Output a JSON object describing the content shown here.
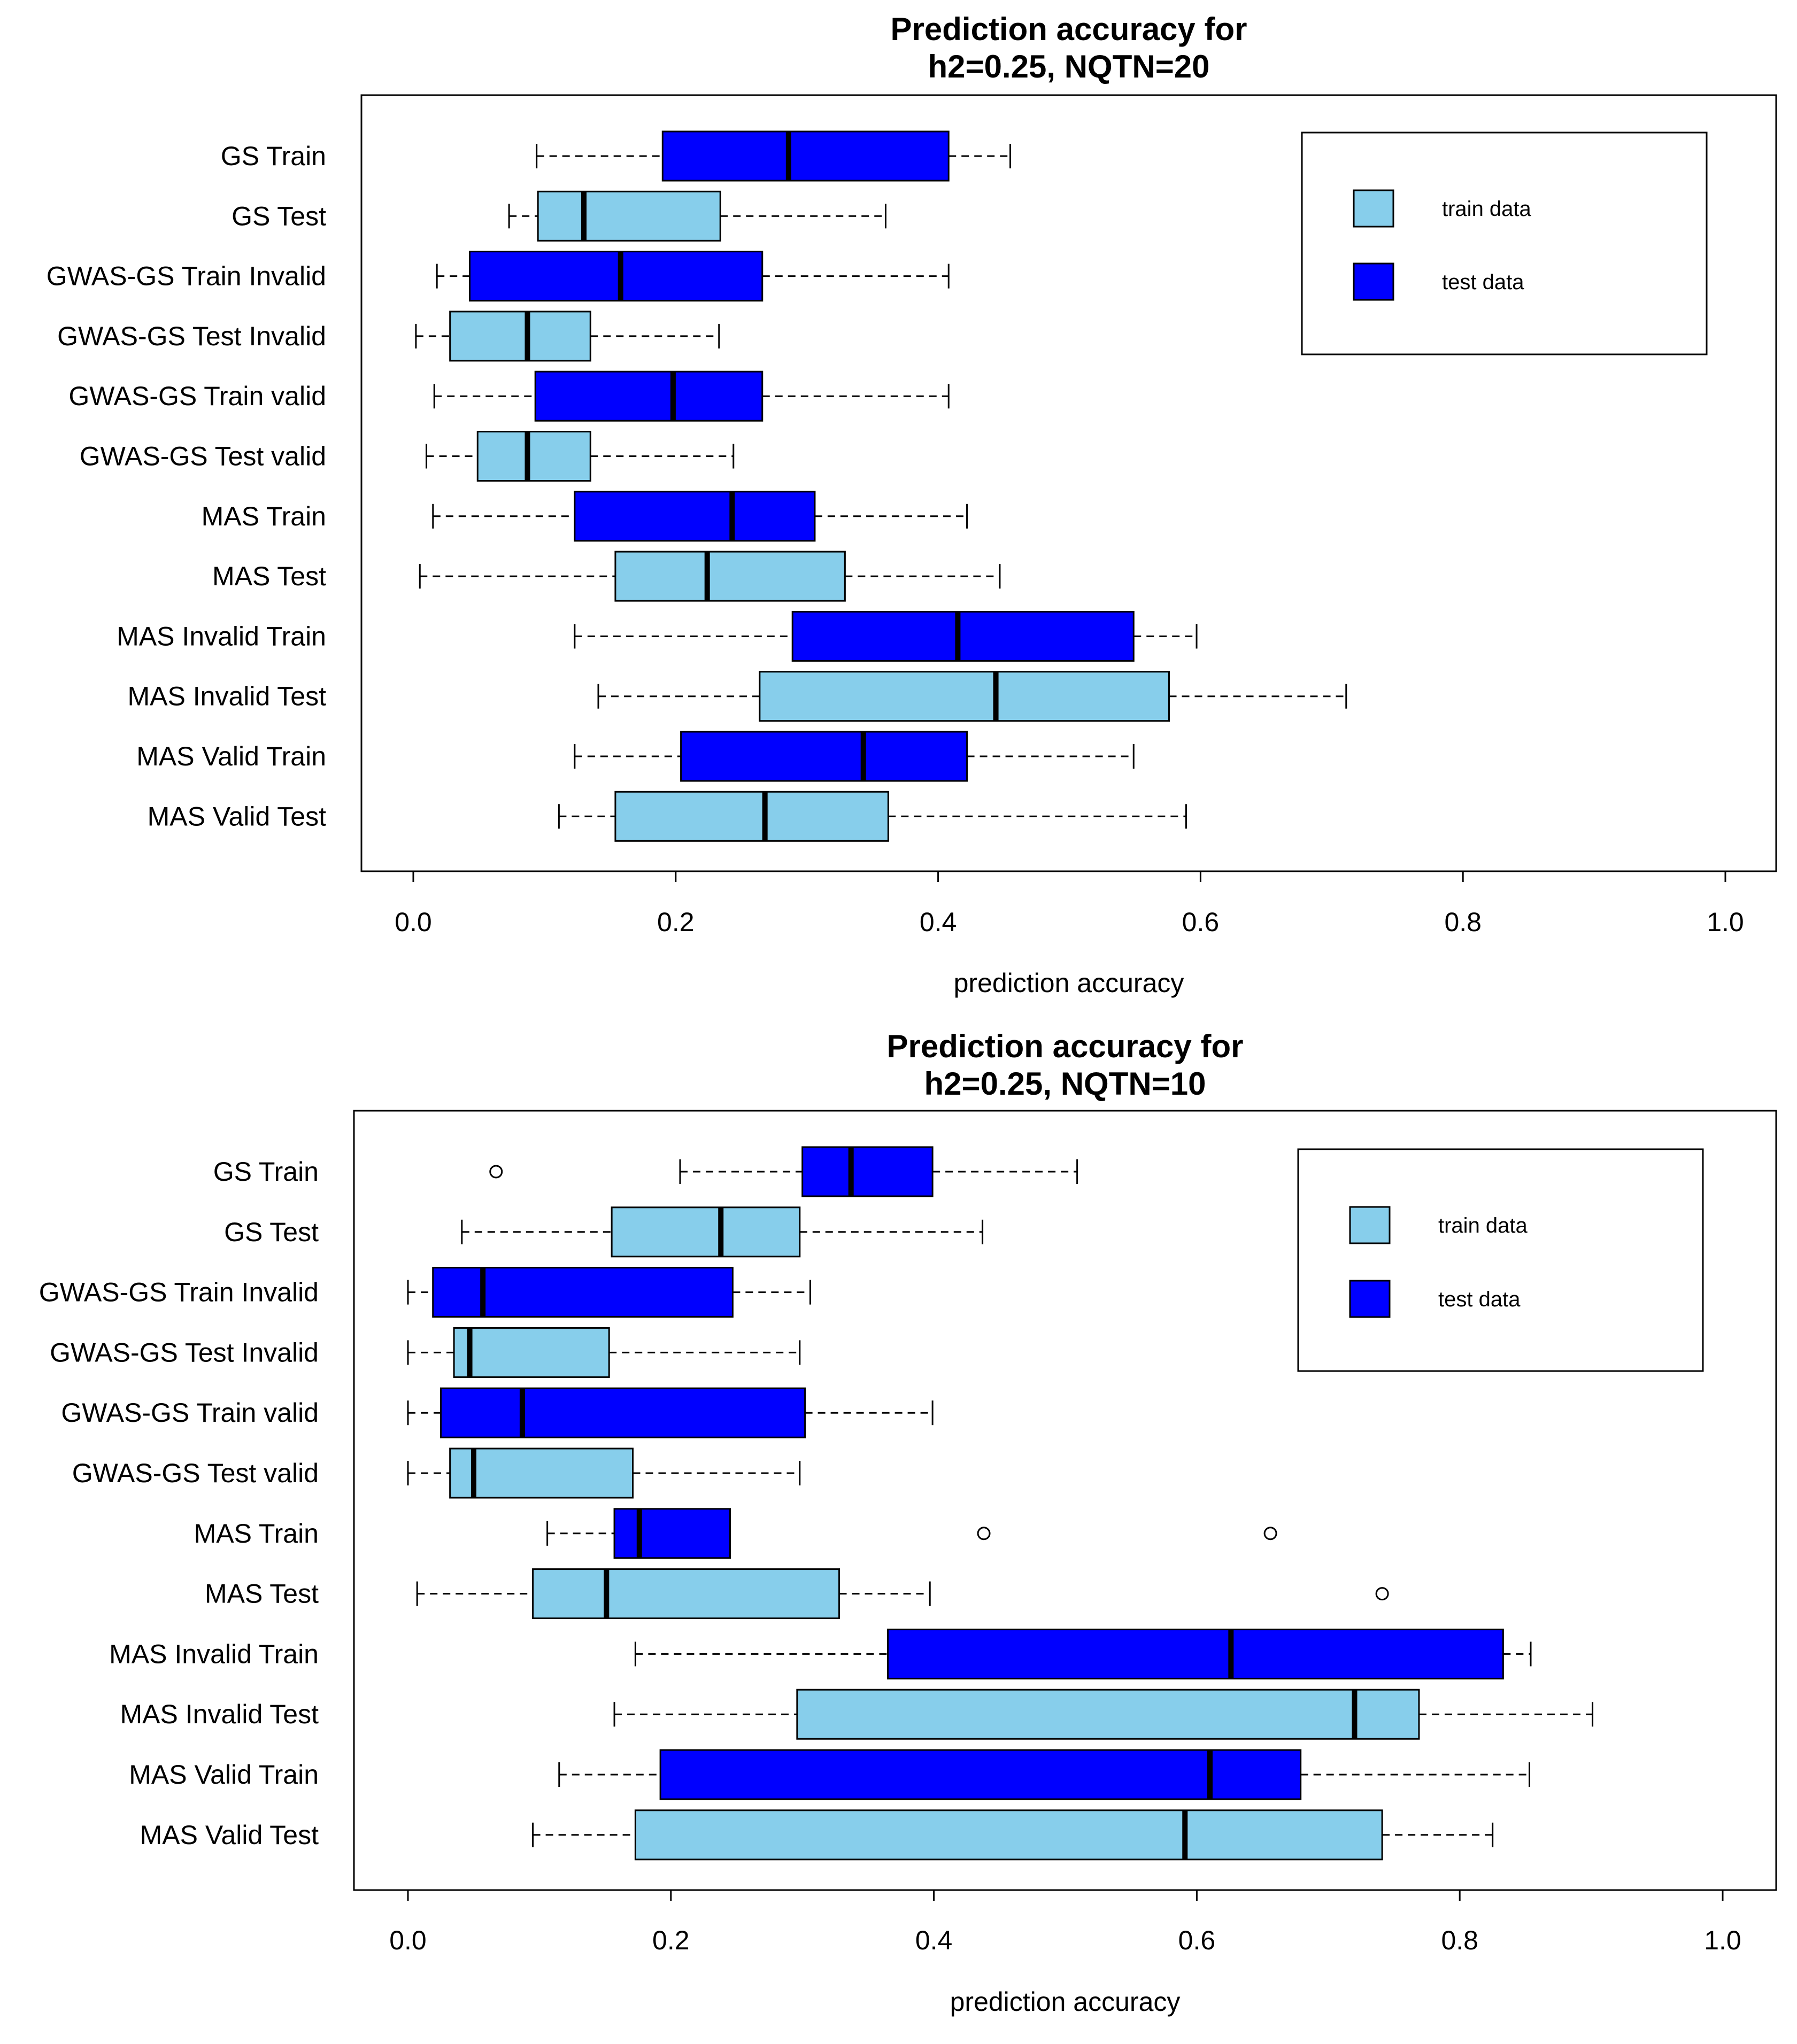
{
  "chart_data": [
    {
      "type": "boxplot",
      "orientation": "horizontal",
      "title": [
        "Prediction accuracy for",
        "h2=0.25, NQTN=20"
      ],
      "xlabel": "prediction accuracy",
      "xlim": [
        0.0,
        1.0
      ],
      "xticks": [
        "0.0",
        "0.2",
        "0.4",
        "0.6",
        "0.8",
        "1.0"
      ],
      "legend": {
        "position": "top-right",
        "entries": [
          {
            "label": "train data",
            "color": "#87ceeb"
          },
          {
            "label": "test data",
            "color": "#0000ff"
          }
        ]
      },
      "categories": [
        {
          "label": "GS Train",
          "color": "#0000ff",
          "min": 0.094,
          "q1": 0.19,
          "median": 0.286,
          "q3": 0.408,
          "max": 0.455,
          "outliers": []
        },
        {
          "label": "GS Test",
          "color": "#87ceeb",
          "min": 0.073,
          "q1": 0.095,
          "median": 0.13,
          "q3": 0.234,
          "max": 0.36,
          "outliers": []
        },
        {
          "label": "GWAS-GS Train Invalid",
          "color": "#0000ff",
          "min": 0.018,
          "q1": 0.043,
          "median": 0.158,
          "q3": 0.266,
          "max": 0.408,
          "outliers": []
        },
        {
          "label": "GWAS-GS Test Invalid",
          "color": "#87ceeb",
          "min": 0.002,
          "q1": 0.028,
          "median": 0.087,
          "q3": 0.135,
          "max": 0.233,
          "outliers": []
        },
        {
          "label": "GWAS-GS Train valid",
          "color": "#0000ff",
          "min": 0.016,
          "q1": 0.093,
          "median": 0.198,
          "q3": 0.266,
          "max": 0.408,
          "outliers": []
        },
        {
          "label": "GWAS-GS Test valid",
          "color": "#87ceeb",
          "min": 0.01,
          "q1": 0.049,
          "median": 0.087,
          "q3": 0.135,
          "max": 0.244,
          "outliers": []
        },
        {
          "label": "MAS Train",
          "color": "#0000ff",
          "min": 0.015,
          "q1": 0.123,
          "median": 0.243,
          "q3": 0.306,
          "max": 0.422,
          "outliers": []
        },
        {
          "label": "MAS Test",
          "color": "#87ceeb",
          "min": 0.005,
          "q1": 0.154,
          "median": 0.224,
          "q3": 0.329,
          "max": 0.447,
          "outliers": []
        },
        {
          "label": "MAS Invalid Train",
          "color": "#0000ff",
          "min": 0.123,
          "q1": 0.289,
          "median": 0.415,
          "q3": 0.549,
          "max": 0.597,
          "outliers": []
        },
        {
          "label": "MAS Invalid Test",
          "color": "#87ceeb",
          "min": 0.141,
          "q1": 0.264,
          "median": 0.444,
          "q3": 0.576,
          "max": 0.711,
          "outliers": []
        },
        {
          "label": "MAS Valid Train",
          "color": "#0000ff",
          "min": 0.123,
          "q1": 0.204,
          "median": 0.343,
          "q3": 0.422,
          "max": 0.549,
          "outliers": []
        },
        {
          "label": "MAS Valid Test",
          "color": "#87ceeb",
          "min": 0.111,
          "q1": 0.154,
          "median": 0.268,
          "q3": 0.362,
          "max": 0.589,
          "outliers": []
        }
      ]
    },
    {
      "type": "boxplot",
      "orientation": "horizontal",
      "title": [
        "Prediction accuracy for",
        "h2=0.25, NQTN=10"
      ],
      "xlabel": "prediction accuracy",
      "xlim": [
        0.0,
        1.0
      ],
      "xticks": [
        "0.0",
        "0.2",
        "0.4",
        "0.6",
        "0.8",
        "1.0"
      ],
      "legend": {
        "position": "top-right",
        "entries": [
          {
            "label": "train data",
            "color": "#87ceeb"
          },
          {
            "label": "test data",
            "color": "#0000ff"
          }
        ]
      },
      "categories": [
        {
          "label": "GS Train",
          "color": "#0000ff",
          "min": 0.207,
          "q1": 0.3,
          "median": 0.337,
          "q3": 0.399,
          "max": 0.509,
          "outliers": [
            0.067
          ]
        },
        {
          "label": "GS Test",
          "color": "#87ceeb",
          "min": 0.041,
          "q1": 0.155,
          "median": 0.238,
          "q3": 0.298,
          "max": 0.437,
          "outliers": []
        },
        {
          "label": "GWAS-GS Train Invalid",
          "color": "#0000ff",
          "min": 0.0,
          "q1": 0.019,
          "median": 0.057,
          "q3": 0.247,
          "max": 0.306,
          "outliers": []
        },
        {
          "label": "GWAS-GS Test Invalid",
          "color": "#87ceeb",
          "min": 0.0,
          "q1": 0.035,
          "median": 0.047,
          "q3": 0.153,
          "max": 0.298,
          "outliers": []
        },
        {
          "label": "GWAS-GS Train valid",
          "color": "#0000ff",
          "min": 0.0,
          "q1": 0.025,
          "median": 0.087,
          "q3": 0.302,
          "max": 0.399,
          "outliers": []
        },
        {
          "label": "GWAS-GS Test valid",
          "color": "#87ceeb",
          "min": 0.0,
          "q1": 0.032,
          "median": 0.05,
          "q3": 0.171,
          "max": 0.298,
          "outliers": []
        },
        {
          "label": "MAS Train",
          "color": "#0000ff",
          "min": 0.106,
          "q1": 0.157,
          "median": 0.176,
          "q3": 0.245,
          "max": 0.245,
          "outliers": [
            0.438,
            0.656
          ]
        },
        {
          "label": "MAS Test",
          "color": "#87ceeb",
          "min": 0.007,
          "q1": 0.095,
          "median": 0.151,
          "q3": 0.328,
          "max": 0.397,
          "outliers": [
            0.741
          ]
        },
        {
          "label": "MAS Invalid Train",
          "color": "#0000ff",
          "min": 0.173,
          "q1": 0.365,
          "median": 0.626,
          "q3": 0.833,
          "max": 0.854,
          "outliers": []
        },
        {
          "label": "MAS Invalid Test",
          "color": "#87ceeb",
          "min": 0.157,
          "q1": 0.296,
          "median": 0.72,
          "q3": 0.769,
          "max": 0.901,
          "outliers": []
        },
        {
          "label": "MAS Valid Train",
          "color": "#0000ff",
          "min": 0.115,
          "q1": 0.192,
          "median": 0.61,
          "q3": 0.679,
          "max": 0.853,
          "outliers": []
        },
        {
          "label": "MAS Valid Test",
          "color": "#87ceeb",
          "min": 0.095,
          "q1": 0.173,
          "median": 0.591,
          "q3": 0.741,
          "max": 0.825,
          "outliers": []
        }
      ]
    }
  ]
}
